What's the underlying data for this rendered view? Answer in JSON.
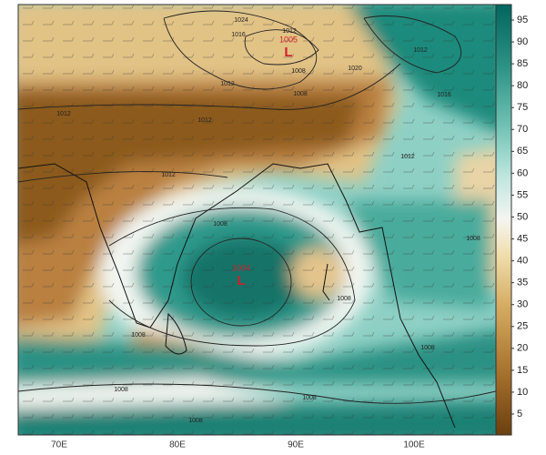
{
  "map": {
    "colorbar": {
      "ticks": [
        95,
        90,
        85,
        80,
        75,
        70,
        65,
        60,
        55,
        50,
        45,
        40,
        35,
        30,
        25,
        20,
        15,
        10,
        5
      ]
    },
    "longitudes": [
      "70E",
      "80E",
      "90E",
      "100E"
    ],
    "lows": [
      {
        "pressure": "1005",
        "symbol": "L"
      },
      {
        "pressure": "1004",
        "symbol": "L"
      }
    ],
    "isobar_labels": [
      "1024",
      "1016",
      "1012",
      "1012",
      "1008",
      "1020",
      "1012",
      "1016",
      "1012",
      "1012",
      "1012",
      "1012",
      "1008",
      "1008",
      "1008",
      "1008",
      "1008",
      "1008",
      "1008",
      "1008",
      "1008"
    ]
  }
}
